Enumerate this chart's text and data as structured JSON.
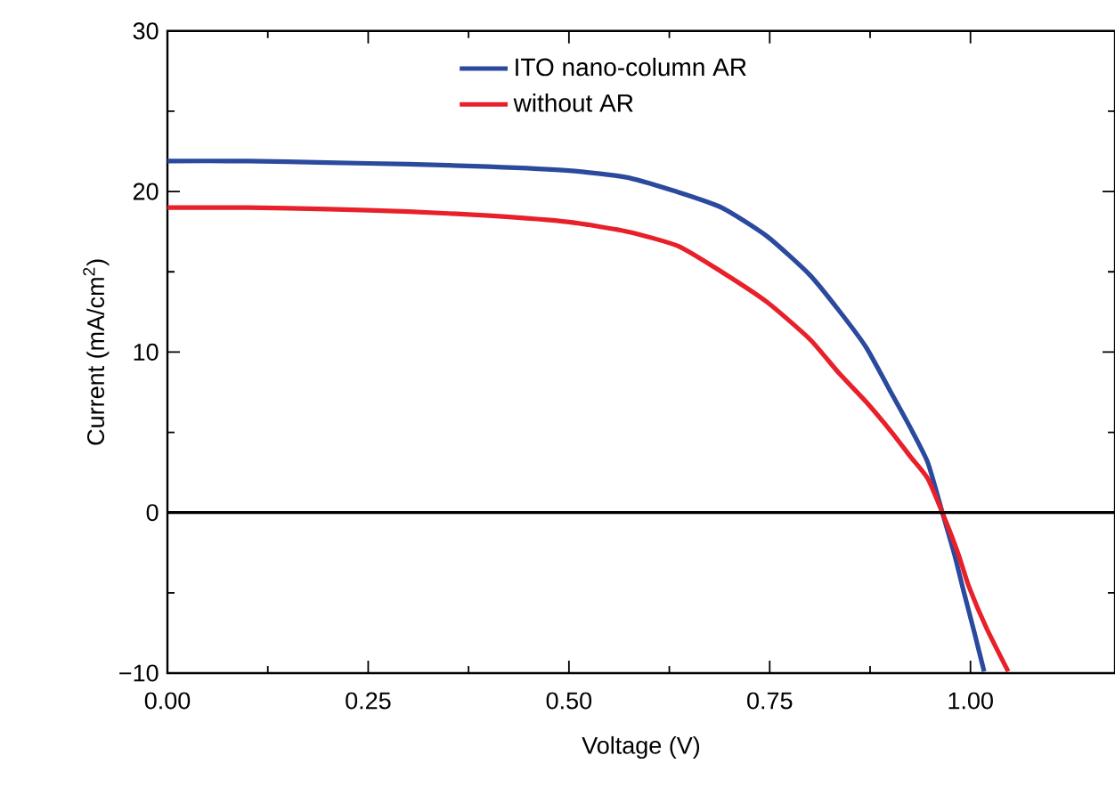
{
  "chart_data": {
    "type": "line",
    "xlabel": "Voltage (V)",
    "ylabel": "Current (mA/cm$^{2}$)",
    "xlim": [
      0,
      1.18
    ],
    "ylim": [
      -10,
      30
    ],
    "xticks": [
      {
        "value": 0,
        "label": "0.00"
      },
      {
        "value": 0.25,
        "label": "0.25"
      },
      {
        "value": 0.5,
        "label": "0.50"
      },
      {
        "value": 0.75,
        "label": "0.75"
      },
      {
        "value": 1,
        "label": "1.00"
      }
    ],
    "yticks": [
      {
        "value": -10,
        "label": "−10"
      },
      0,
      10,
      20,
      30
    ],
    "grid": false,
    "legend": "top",
    "marker": "none",
    "line_style": "solid",
    "ref_lines": [
      {
        "axis": "y",
        "value": 0,
        "color": "#000000"
      }
    ],
    "series": [
      {
        "name": "ITO nano-column AR",
        "color": "#2b4a9e",
        "x": [
          0,
          0.1,
          0.2,
          0.3,
          0.4,
          0.5,
          0.57,
          0.627,
          0.69,
          0.747,
          0.8,
          0.836,
          0.87,
          0.902,
          0.925,
          0.947,
          0.965,
          0.98,
          0.991,
          1.005,
          1.017
        ],
        "values": [
          21.9,
          21.9,
          21.8,
          21.7,
          21.55,
          21.3,
          20.9,
          20.1,
          19.0,
          17.2,
          14.8,
          12.6,
          10.3,
          7.4,
          5.3,
          3.1,
          0,
          -2.6,
          -4.8,
          -7.5,
          -9.9
        ]
      },
      {
        "name": "without AR",
        "color": "#e8202a",
        "x": [
          0,
          0.1,
          0.2,
          0.3,
          0.4,
          0.5,
          0.573,
          0.636,
          0.69,
          0.747,
          0.8,
          0.836,
          0.87,
          0.902,
          0.925,
          0.947,
          0.969,
          0.985,
          0.998,
          1.02,
          1.047
        ],
        "values": [
          19.0,
          19.0,
          18.9,
          18.75,
          18.5,
          18.1,
          17.5,
          16.6,
          15.0,
          13.1,
          10.8,
          8.7,
          6.9,
          5.0,
          3.5,
          2.1,
          -0.5,
          -2.6,
          -4.6,
          -7.2,
          -9.9
        ]
      }
    ]
  }
}
